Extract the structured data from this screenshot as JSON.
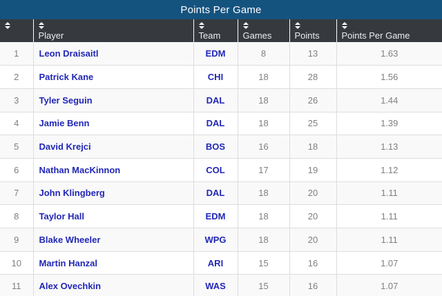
{
  "title": "Points Per Game",
  "colors": {
    "title_bar": "#15537f",
    "header_bg": "#36393e",
    "link_blue": "#2127b5",
    "muted_text": "#7f7f7f",
    "row_stripe": "#f9f9f9",
    "border": "#dddddd"
  },
  "table": {
    "columns": [
      {
        "key": "rank",
        "label": "",
        "icon": "sort-icon"
      },
      {
        "key": "player",
        "label": "Player",
        "icon": "sort-icon"
      },
      {
        "key": "team",
        "label": "Team",
        "icon": "sort-icon"
      },
      {
        "key": "games",
        "label": "Games",
        "icon": "sort-icon"
      },
      {
        "key": "points",
        "label": "Points",
        "icon": "sort-icon"
      },
      {
        "key": "ppg",
        "label": "Points Per Game",
        "icon": "sort-icon"
      }
    ],
    "rows": [
      {
        "rank": "1",
        "player": "Leon Draisaitl",
        "team": "EDM",
        "games": "8",
        "points": "13",
        "ppg": "1.63"
      },
      {
        "rank": "2",
        "player": "Patrick Kane",
        "team": "CHI",
        "games": "18",
        "points": "28",
        "ppg": "1.56"
      },
      {
        "rank": "3",
        "player": "Tyler Seguin",
        "team": "DAL",
        "games": "18",
        "points": "26",
        "ppg": "1.44"
      },
      {
        "rank": "4",
        "player": "Jamie Benn",
        "team": "DAL",
        "games": "18",
        "points": "25",
        "ppg": "1.39"
      },
      {
        "rank": "5",
        "player": "David Krejci",
        "team": "BOS",
        "games": "16",
        "points": "18",
        "ppg": "1.13"
      },
      {
        "rank": "6",
        "player": "Nathan MacKinnon",
        "team": "COL",
        "games": "17",
        "points": "19",
        "ppg": "1.12"
      },
      {
        "rank": "7",
        "player": "John Klingberg",
        "team": "DAL",
        "games": "18",
        "points": "20",
        "ppg": "1.11"
      },
      {
        "rank": "8",
        "player": "Taylor Hall",
        "team": "EDM",
        "games": "18",
        "points": "20",
        "ppg": "1.11"
      },
      {
        "rank": "9",
        "player": "Blake Wheeler",
        "team": "WPG",
        "games": "18",
        "points": "20",
        "ppg": "1.11"
      },
      {
        "rank": "10",
        "player": "Martin Hanzal",
        "team": "ARI",
        "games": "15",
        "points": "16",
        "ppg": "1.07"
      },
      {
        "rank": "11",
        "player": "Alex Ovechkin",
        "team": "WAS",
        "games": "15",
        "points": "16",
        "ppg": "1.07"
      }
    ]
  }
}
